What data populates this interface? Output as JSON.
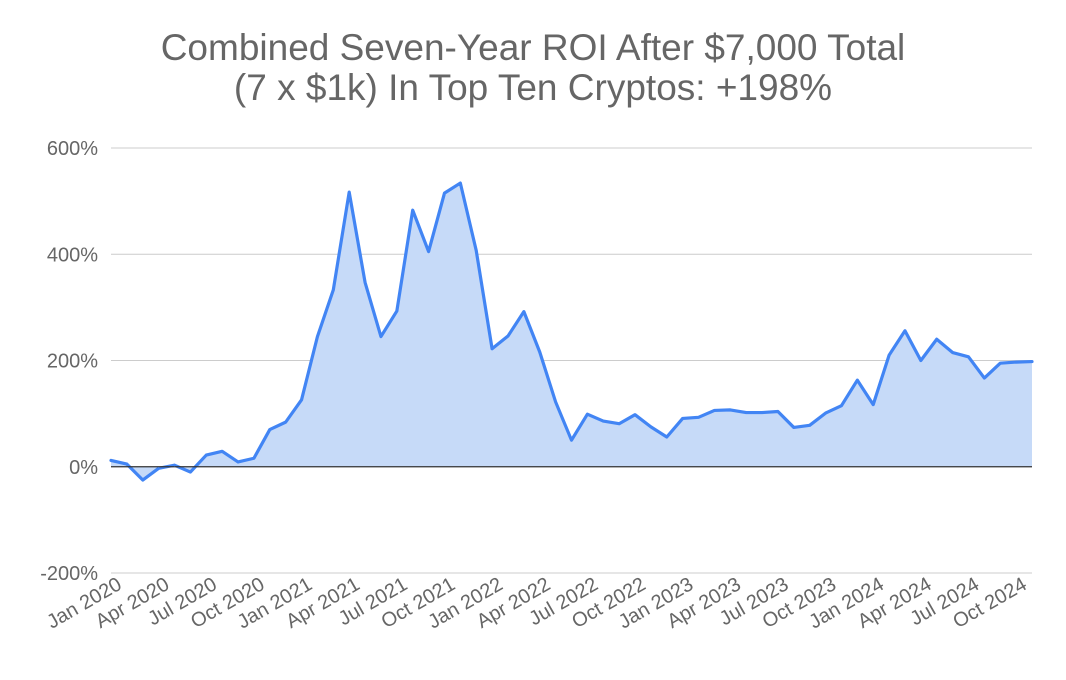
{
  "chart_data": {
    "type": "area",
    "title_lines": [
      "Combined Seven-Year ROI After $7,000 Total",
      "(7 x $1k) In Top Ten Cryptos: +198%"
    ],
    "xlabel": "",
    "ylabel": "",
    "ylim": [
      -200,
      600
    ],
    "y_ticks": [
      600,
      400,
      200,
      0,
      -200
    ],
    "y_tick_labels": [
      "600%",
      "400%",
      "200%",
      "0%",
      "-200%"
    ],
    "x_tick_labels": [
      "Jan 2020",
      "Apr 2020",
      "Jul 2020",
      "Oct 2020",
      "Jan 2021",
      "Apr 2021",
      "Jul 2021",
      "Oct 2021",
      "Jan 2022",
      "Apr 2022",
      "Jul 2022",
      "Oct 2022",
      "Jan 2023",
      "Apr 2023",
      "Jul 2023",
      "Oct 2023",
      "Jan 2024",
      "Apr 2024",
      "Jul 2024",
      "Oct 2024"
    ],
    "x": [
      "2020-01",
      "2020-02",
      "2020-03",
      "2020-04",
      "2020-05",
      "2020-06",
      "2020-07",
      "2020-08",
      "2020-09",
      "2020-10",
      "2020-11",
      "2020-12",
      "2021-01",
      "2021-02",
      "2021-03",
      "2021-04",
      "2021-05",
      "2021-06",
      "2021-07",
      "2021-08",
      "2021-09",
      "2021-10",
      "2021-11",
      "2021-12",
      "2022-01",
      "2022-02",
      "2022-03",
      "2022-04",
      "2022-05",
      "2022-06",
      "2022-07",
      "2022-08",
      "2022-09",
      "2022-10",
      "2022-11",
      "2022-12",
      "2023-01",
      "2023-02",
      "2023-03",
      "2023-04",
      "2023-05",
      "2023-06",
      "2023-07",
      "2023-08",
      "2023-09",
      "2023-10",
      "2023-11",
      "2023-12",
      "2024-01",
      "2024-02",
      "2024-03",
      "2024-04",
      "2024-05",
      "2024-06",
      "2024-07",
      "2024-08",
      "2024-09",
      "2024-10",
      "2024-11"
    ],
    "series": [
      {
        "values": [
          12,
          5,
          -25,
          -3,
          3,
          -10,
          22,
          29,
          9,
          16,
          70,
          84,
          126,
          245,
          333,
          517,
          347,
          245,
          293,
          483,
          405,
          515,
          534,
          407,
          222,
          246,
          292,
          216,
          122,
          50,
          99,
          86,
          81,
          98,
          75,
          56,
          91,
          93,
          106,
          107,
          102,
          102,
          104,
          74,
          78,
          101,
          115,
          163,
          117,
          210,
          256,
          200,
          240,
          215,
          207,
          167,
          195,
          197,
          198
        ]
      }
    ],
    "colors": {
      "line": "#4285f4",
      "fill": "#c6daf8",
      "grid": "#cccccc",
      "zero_axis": "#333333",
      "text": "#666666"
    },
    "grid": true,
    "legend": "none"
  }
}
